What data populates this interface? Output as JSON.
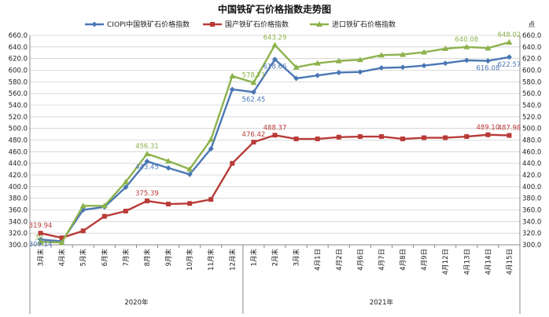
{
  "colors": {
    "ciopi": "#4a77b4",
    "domestic": "#b83b38",
    "imported": "#8db24d"
  },
  "chart_data": {
    "type": "line",
    "title": "中国铁矿石价格指数走势图",
    "unit_label": "点",
    "ylim": [
      300,
      660
    ],
    "ytick_step": 20,
    "grid": true,
    "legend_position": "top",
    "categories": [
      "3月末",
      "4月末",
      "5月末",
      "6月末",
      "7月末",
      "8月末",
      "9月末",
      "10月末",
      "11月末",
      "12月末",
      "1月末",
      "2月末",
      "3月末",
      "4月1日",
      "4月2日",
      "4月6日",
      "4月7日",
      "4月8日",
      "4月9日",
      "4月12日",
      "4月13日",
      "4月14日",
      "4月15日"
    ],
    "year_groups": [
      {
        "label": "2020年",
        "count": 10
      },
      {
        "label": "2021年",
        "count": 13
      }
    ],
    "series": [
      {
        "name": "CIOPI中国铁矿石价格指数",
        "color_key": "ciopi",
        "marker": "diamond",
        "values": [
          309.14,
          306,
          360,
          365,
          399,
          443.45,
          432,
          421,
          465,
          567,
          562.45,
          618.66,
          586,
          591,
          596,
          597,
          604,
          605,
          608,
          612,
          617,
          616.08,
          622.57
        ],
        "labels": [
          "309.14",
          "",
          "",
          "",
          "",
          "443.45",
          "",
          "",
          "",
          "",
          "562.45",
          "618.66",
          "",
          "",
          "",
          "",
          "",
          "",
          "",
          "",
          "",
          "616.08",
          "622.57"
        ]
      },
      {
        "name": "国产铁矿石价格指数",
        "color_key": "domestic",
        "marker": "square",
        "values": [
          319.94,
          312,
          324,
          349,
          358,
          375.39,
          370,
          371,
          378,
          440,
          476.42,
          488.37,
          482,
          482,
          485,
          486,
          486,
          482,
          484,
          484,
          486,
          489.1,
          487.98
        ],
        "labels": [
          "319.94",
          "",
          "",
          "",
          "",
          "375.39",
          "",
          "",
          "",
          "",
          "476.42",
          "488.37",
          "",
          "",
          "",
          "",
          "",
          "",
          "",
          "",
          "",
          "489.10",
          "487.98"
        ]
      },
      {
        "name": "进口铁矿石价格指数",
        "color_key": "imported",
        "marker": "triangle",
        "values": [
          305,
          304,
          367,
          367,
          408,
          456.31,
          444,
          430,
          481,
          590,
          578.71,
          643.29,
          605,
          612,
          616,
          618,
          626,
          627,
          631,
          637,
          640.08,
          638,
          648.02
        ],
        "labels": [
          "30_",
          "",
          "",
          "",
          "",
          "456.31",
          "",
          "",
          "",
          "",
          "578.71",
          "643.29",
          "",
          "",
          "",
          "",
          "",
          "",
          "",
          "",
          "640.08",
          "",
          "648.02"
        ]
      }
    ]
  }
}
